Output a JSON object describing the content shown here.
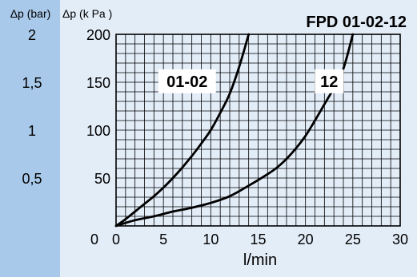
{
  "colors": {
    "left_band": "#a9c9ea",
    "plot_bg": "#e3edf8",
    "grid": "#000000",
    "curve": "#000000",
    "label_box": "#ffffff"
  },
  "chart_data": {
    "type": "line",
    "title": "FPD 01-02-12",
    "xlabel": "l/min",
    "ylabel_primary": "Δp (k Pa )",
    "ylabel_secondary": "Δp (bar)",
    "xlim": [
      0,
      30
    ],
    "ylim": [
      0,
      200
    ],
    "x_ticks": [
      "0",
      "5",
      "10",
      "15",
      "20",
      "25",
      "30"
    ],
    "y_ticks_kpa": [
      "50",
      "100",
      "150",
      "200"
    ],
    "y_ticks_bar": [
      "0,5",
      "1",
      "1,5",
      "2"
    ],
    "grid": true,
    "series": [
      {
        "name": "01-02",
        "x": [
          0,
          1,
          2,
          3,
          4,
          5,
          6,
          7,
          8,
          9,
          10,
          11,
          12,
          13,
          14
        ],
        "y": [
          0,
          7,
          15,
          23,
          31,
          40,
          50,
          61,
          73,
          86,
          100,
          118,
          138,
          166,
          200
        ]
      },
      {
        "name": "12",
        "x": [
          0,
          2,
          4,
          6,
          8,
          10,
          12,
          14,
          16,
          17,
          18,
          19,
          20,
          21,
          22,
          23,
          24,
          25
        ],
        "y": [
          0,
          6,
          10,
          15,
          19,
          24,
          31,
          42,
          54,
          61,
          70,
          81,
          94,
          110,
          127,
          144,
          164,
          200
        ]
      }
    ]
  }
}
